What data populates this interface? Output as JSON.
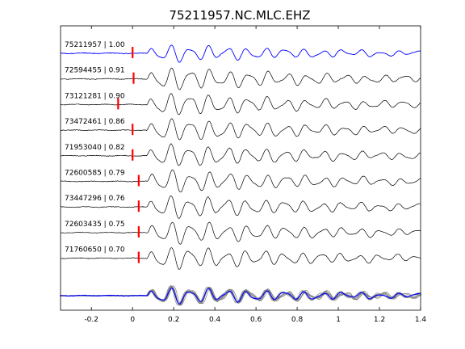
{
  "chart_data": {
    "type": "line",
    "title": "75211957.NC.MLC.EHZ",
    "xlabel": "",
    "ylabel": "",
    "xlim": [
      -0.35,
      1.4
    ],
    "xticks": [
      -0.2,
      0,
      0.2,
      0.4,
      0.6,
      0.8,
      1.0,
      1.2,
      1.4
    ],
    "xtick_labels": [
      "-0.2",
      "0",
      "0.2",
      "0.4",
      "0.6",
      "0.8",
      "1",
      "1.2",
      "1.4"
    ],
    "grid": false,
    "legend": "none",
    "reference_color": "#0000ff",
    "trace_color": "#000000",
    "pick_color": "#ff0000",
    "stack_color": "#808080",
    "series": [
      {
        "label": "75211957 | 1.00",
        "event_id": "75211957",
        "correlation": 1.0,
        "pick_time": 0.0,
        "reference": true
      },
      {
        "label": "72594455 | 0.91",
        "event_id": "72594455",
        "correlation": 0.91,
        "pick_time": 0.005,
        "reference": false
      },
      {
        "label": "73121281 | 0.90",
        "event_id": "73121281",
        "correlation": 0.9,
        "pick_time": -0.07,
        "reference": false
      },
      {
        "label": "73472461 | 0.86",
        "event_id": "73472461",
        "correlation": 0.86,
        "pick_time": 0.0,
        "reference": false
      },
      {
        "label": "71953040 | 0.82",
        "event_id": "71953040",
        "correlation": 0.82,
        "pick_time": 0.0,
        "reference": false
      },
      {
        "label": "72600585 | 0.79",
        "event_id": "72600585",
        "correlation": 0.79,
        "pick_time": 0.03,
        "reference": false
      },
      {
        "label": "73447296 | 0.76",
        "event_id": "73447296",
        "correlation": 0.76,
        "pick_time": 0.03,
        "reference": false
      },
      {
        "label": "72603435 | 0.75",
        "event_id": "72603435",
        "correlation": 0.75,
        "pick_time": 0.03,
        "reference": false
      },
      {
        "label": "71760650 | 0.70",
        "event_id": "71760650",
        "correlation": 0.7,
        "pick_time": 0.03,
        "reference": false
      }
    ]
  }
}
